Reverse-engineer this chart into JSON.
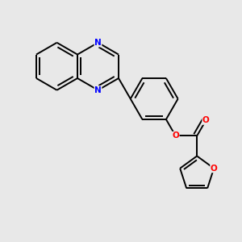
{
  "background_color": "#e8e8e8",
  "bond_color": "#000000",
  "N_color": "#0000ff",
  "O_color": "#ff0000",
  "lw": 1.4,
  "figsize": [
    3.0,
    3.0
  ],
  "dpi": 100,
  "xlim": [
    0,
    10
  ],
  "ylim": [
    0,
    10
  ]
}
